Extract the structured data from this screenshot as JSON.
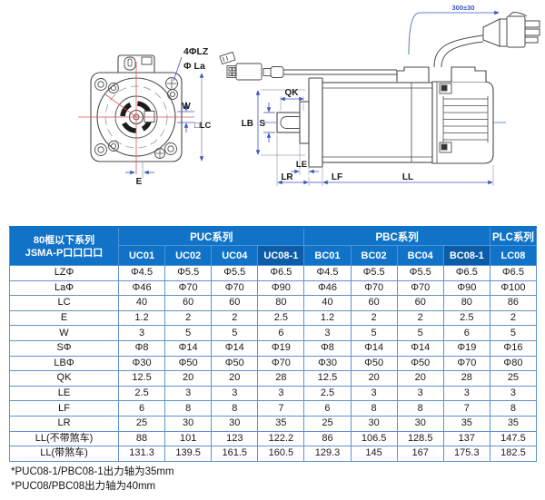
{
  "diagram": {
    "front_labels": {
      "holes": "4ΦLZ",
      "bolt_circle": "Φ La",
      "key_width": "W",
      "frame": "□LC",
      "offset": "E"
    },
    "side_labels": {
      "key_length": "QK",
      "shaft_dia": "S",
      "body_dia": "LB",
      "boss_len": "LE",
      "flange_thk": "LF",
      "shaft_len": "LR",
      "body_len": "LL",
      "cable_length": "300±30"
    }
  },
  "table": {
    "corner": {
      "line1": "80框以下系列",
      "line2": "JSMA-P口口口口"
    },
    "groups": [
      {
        "label": "PUC系列",
        "models": [
          "UC01",
          "UC02",
          "UC04",
          "UC08-1"
        ]
      },
      {
        "label": "PBC系列",
        "models": [
          "BC01",
          "BC02",
          "BC04",
          "BC08-1"
        ]
      },
      {
        "label": "PLC系列",
        "models": [
          "LC08"
        ]
      }
    ],
    "rows": [
      {
        "label": "LZΦ",
        "values": [
          "Φ4.5",
          "Φ5.5",
          "Φ5.5",
          "Φ6.5",
          "Φ4.5",
          "Φ5.5",
          "Φ5.5",
          "Φ6.5",
          "Φ6.5"
        ]
      },
      {
        "label": "LaΦ",
        "values": [
          "Φ46",
          "Φ70",
          "Φ70",
          "Φ90",
          "Φ46",
          "Φ70",
          "Φ70",
          "Φ90",
          "Φ100"
        ]
      },
      {
        "label": "LC",
        "values": [
          "40",
          "60",
          "60",
          "80",
          "40",
          "60",
          "60",
          "80",
          "86"
        ]
      },
      {
        "label": "E",
        "values": [
          "1.2",
          "2",
          "2",
          "2.5",
          "1.2",
          "2",
          "2",
          "2.5",
          "2"
        ]
      },
      {
        "label": "W",
        "values": [
          "3",
          "5",
          "5",
          "6",
          "3",
          "5",
          "5",
          "6",
          "5"
        ]
      },
      {
        "label": "SΦ",
        "values": [
          "Φ8",
          "Φ14",
          "Φ14",
          "Φ19",
          "Φ8",
          "Φ14",
          "Φ14",
          "Φ19",
          "Φ16"
        ]
      },
      {
        "label": "LBΦ",
        "values": [
          "Φ30",
          "Φ50",
          "Φ50",
          "Φ70",
          "Φ30",
          "Φ50",
          "Φ50",
          "Φ70",
          "Φ80"
        ]
      },
      {
        "label": "QK",
        "values": [
          "12.5",
          "20",
          "20",
          "28",
          "12.5",
          "20",
          "20",
          "28",
          "25"
        ]
      },
      {
        "label": "LE",
        "values": [
          "2.5",
          "3",
          "3",
          "3",
          "2.5",
          "3",
          "3",
          "3",
          "3"
        ]
      },
      {
        "label": "LF",
        "values": [
          "6",
          "8",
          "8",
          "7",
          "6",
          "8",
          "8",
          "7",
          "8"
        ]
      },
      {
        "label": "LR",
        "values": [
          "25",
          "30",
          "30",
          "35",
          "25",
          "30",
          "30",
          "35",
          "35"
        ]
      },
      {
        "label": "LL(不带煞车)",
        "values": [
          "88",
          "101",
          "123",
          "122.2",
          "86",
          "106.5",
          "128.5",
          "137",
          "147.5"
        ]
      },
      {
        "label": "LL(带煞车)",
        "values": [
          "131.3",
          "139.5",
          "161.5",
          "160.5",
          "129.3",
          "145",
          "167",
          "175.3",
          "182.5"
        ]
      }
    ]
  },
  "notes": {
    "line1": "*PUC08-1/PBC08-1出力轴为35mm",
    "line2": "*PUC08/PBC08出力轴为40mm"
  },
  "colors": {
    "header_blue": "#1173C8",
    "header_dark_blue": "#0D5CA8",
    "grid_blue": "#5F93CC",
    "dimension_blue": "#3C55C0",
    "centerline_red": "#D85555"
  }
}
